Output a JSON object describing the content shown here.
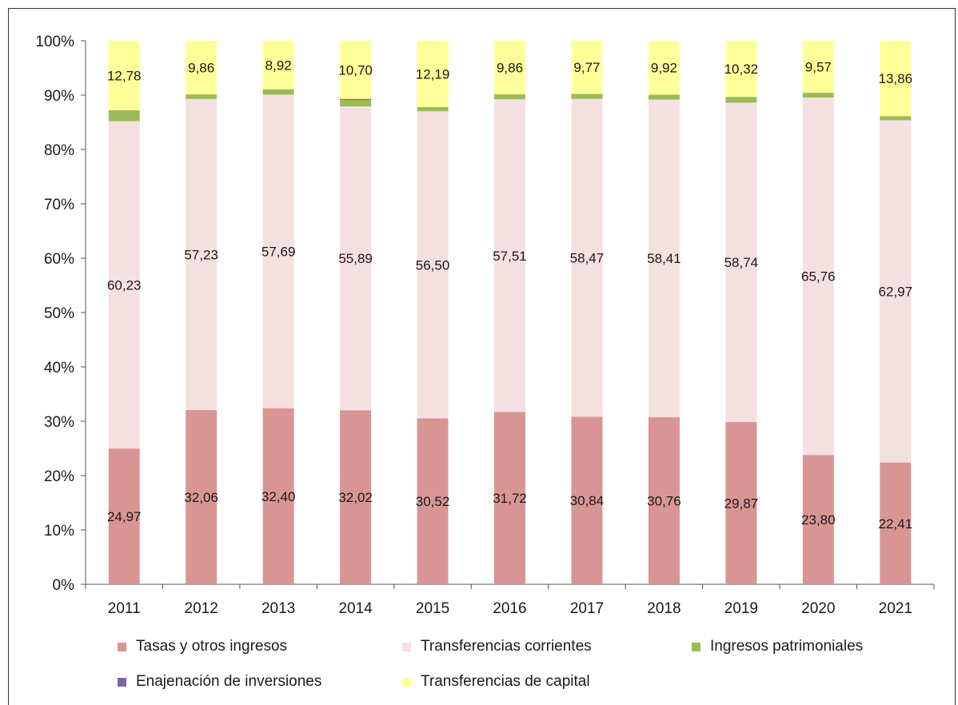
{
  "chart_data": {
    "type": "bar",
    "stacked": true,
    "categories": [
      "2011",
      "2012",
      "2013",
      "2014",
      "2015",
      "2016",
      "2017",
      "2018",
      "2019",
      "2020",
      "2021"
    ],
    "ylim": [
      0,
      100
    ],
    "y_ticks": [
      "0%",
      "10%",
      "20%",
      "30%",
      "40%",
      "50%",
      "60%",
      "70%",
      "80%",
      "90%",
      "100%"
    ],
    "grid": false,
    "legend_position": "bottom",
    "series": [
      {
        "name": "Tasas y otros ingresos",
        "color": "#d99594",
        "values": [
          24.97,
          32.06,
          32.4,
          32.02,
          30.52,
          31.72,
          30.84,
          30.76,
          29.87,
          23.8,
          22.41
        ],
        "labels": [
          "24,97",
          "32,06",
          "32,40",
          "32,02",
          "30,52",
          "31,72",
          "30,84",
          "30,76",
          "29,87",
          "23,80",
          "22,41"
        ]
      },
      {
        "name": "Transferencias corrientes",
        "color": "#f4e0e0",
        "values": [
          60.23,
          57.23,
          57.69,
          55.89,
          56.5,
          57.51,
          58.47,
          58.41,
          58.74,
          65.76,
          62.97
        ],
        "labels": [
          "60,23",
          "57,23",
          "57,69",
          "55,89",
          "56,50",
          "57,51",
          "58,47",
          "58,41",
          "58,74",
          "65,76",
          "62,97"
        ]
      },
      {
        "name": "Ingresos patrimoniales",
        "color": "#9bbb59",
        "values": [
          2.02,
          0.85,
          0.99,
          1.2,
          0.79,
          0.91,
          0.92,
          0.91,
          1.07,
          0.87,
          0.76
        ],
        "labels": []
      },
      {
        "name": "Enajenación de inversiones",
        "color": "#8064a2",
        "values": [
          0,
          0,
          0,
          0.19,
          0,
          0,
          0,
          0,
          0,
          0,
          0
        ],
        "labels": []
      },
      {
        "name": "Transferencias de capital",
        "color": "#ffff99",
        "values": [
          12.78,
          9.86,
          8.92,
          10.7,
          12.19,
          9.86,
          9.77,
          9.92,
          10.32,
          9.57,
          13.86
        ],
        "labels": [
          "12,78",
          "9,86",
          "8,92",
          "10,70",
          "12,19",
          "9,86",
          "9,77",
          "9,92",
          "10,32",
          "9,57",
          "13,86"
        ]
      }
    ]
  }
}
